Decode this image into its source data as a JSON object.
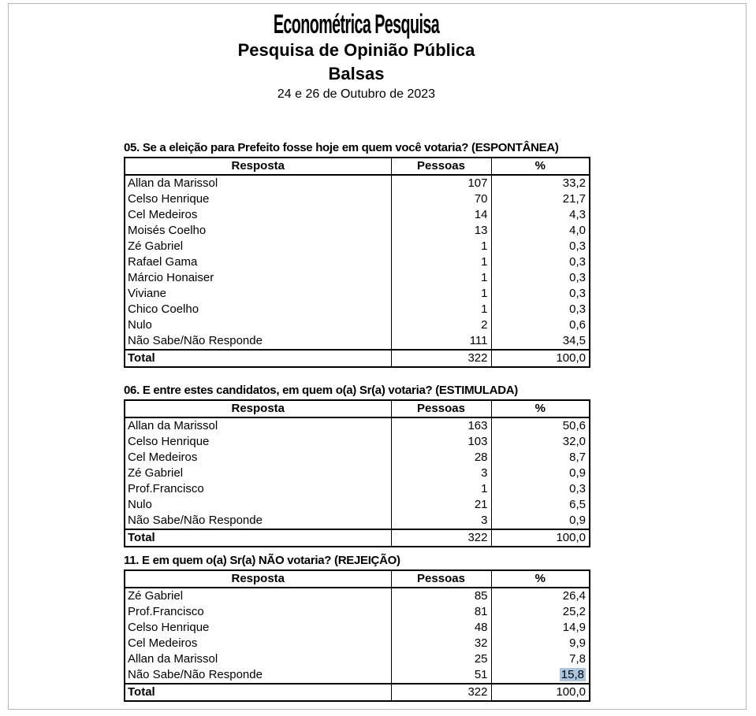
{
  "header": {
    "logo": "Econométrica Pesquisa",
    "title": "Pesquisa de Opinião Pública",
    "city": "Balsas",
    "date": "24 e 26 de Outubro de 2023"
  },
  "columns": {
    "resposta": "Resposta",
    "pessoas": "Pessoas",
    "percent": "%"
  },
  "tables": [
    {
      "question": "05. Se a eleição para Prefeito fosse hoje em quem você votaria? (ESPONTÂNEA)",
      "rows": [
        [
          "Allan da Marissol",
          "107",
          "33,2"
        ],
        [
          "Celso Henrique",
          "70",
          "21,7"
        ],
        [
          "Cel Medeiros",
          "14",
          "4,3"
        ],
        [
          "Moisés Coelho",
          "13",
          "4,0"
        ],
        [
          "Zé Gabriel",
          "1",
          "0,3"
        ],
        [
          "Rafael Gama",
          "1",
          "0,3"
        ],
        [
          "Márcio Honaiser",
          "1",
          "0,3"
        ],
        [
          "Viviane",
          "1",
          "0,3"
        ],
        [
          "Chico Coelho",
          "1",
          "0,3"
        ],
        [
          "Nulo",
          "2",
          "0,6"
        ],
        [
          "Não Sabe/Não Responde",
          "111",
          "34,5"
        ]
      ],
      "total": [
        "Total",
        "322",
        "100,0"
      ]
    },
    {
      "question": "06. E entre estes candidatos, em quem o(a) Sr(a) votaria? (ESTIMULADA)",
      "rows": [
        [
          "Allan da Marissol",
          "163",
          "50,6"
        ],
        [
          "Celso Henrique",
          "103",
          "32,0"
        ],
        [
          "Cel Medeiros",
          "28",
          "8,7"
        ],
        [
          "Zé Gabriel",
          "3",
          "0,9"
        ],
        [
          "Prof.Francisco",
          "1",
          "0,3"
        ],
        [
          "Nulo",
          "21",
          "6,5"
        ],
        [
          "Não Sabe/Não Responde",
          "3",
          "0,9"
        ]
      ],
      "total": [
        "Total",
        "322",
        "100,0"
      ]
    },
    {
      "question": "11. E em quem o(a) Sr(a) NÃO votaria? (REJEIÇÃO)",
      "rows": [
        [
          "Zé Gabriel",
          "85",
          "26,4"
        ],
        [
          "Prof.Francisco",
          "81",
          "25,2"
        ],
        [
          "Celso Henrique",
          "48",
          "14,9"
        ],
        [
          "Cel Medeiros",
          "32",
          "9,9"
        ],
        [
          "Allan da Marissol",
          "25",
          "7,8"
        ],
        [
          "Não Sabe/Não Responde",
          "51",
          "15,8"
        ]
      ],
      "total": [
        "Total",
        "322",
        "100,0"
      ]
    }
  ],
  "selection": {
    "table_index": 2,
    "row_index": 5,
    "col_index": 2,
    "color": "#a9c7e1"
  }
}
